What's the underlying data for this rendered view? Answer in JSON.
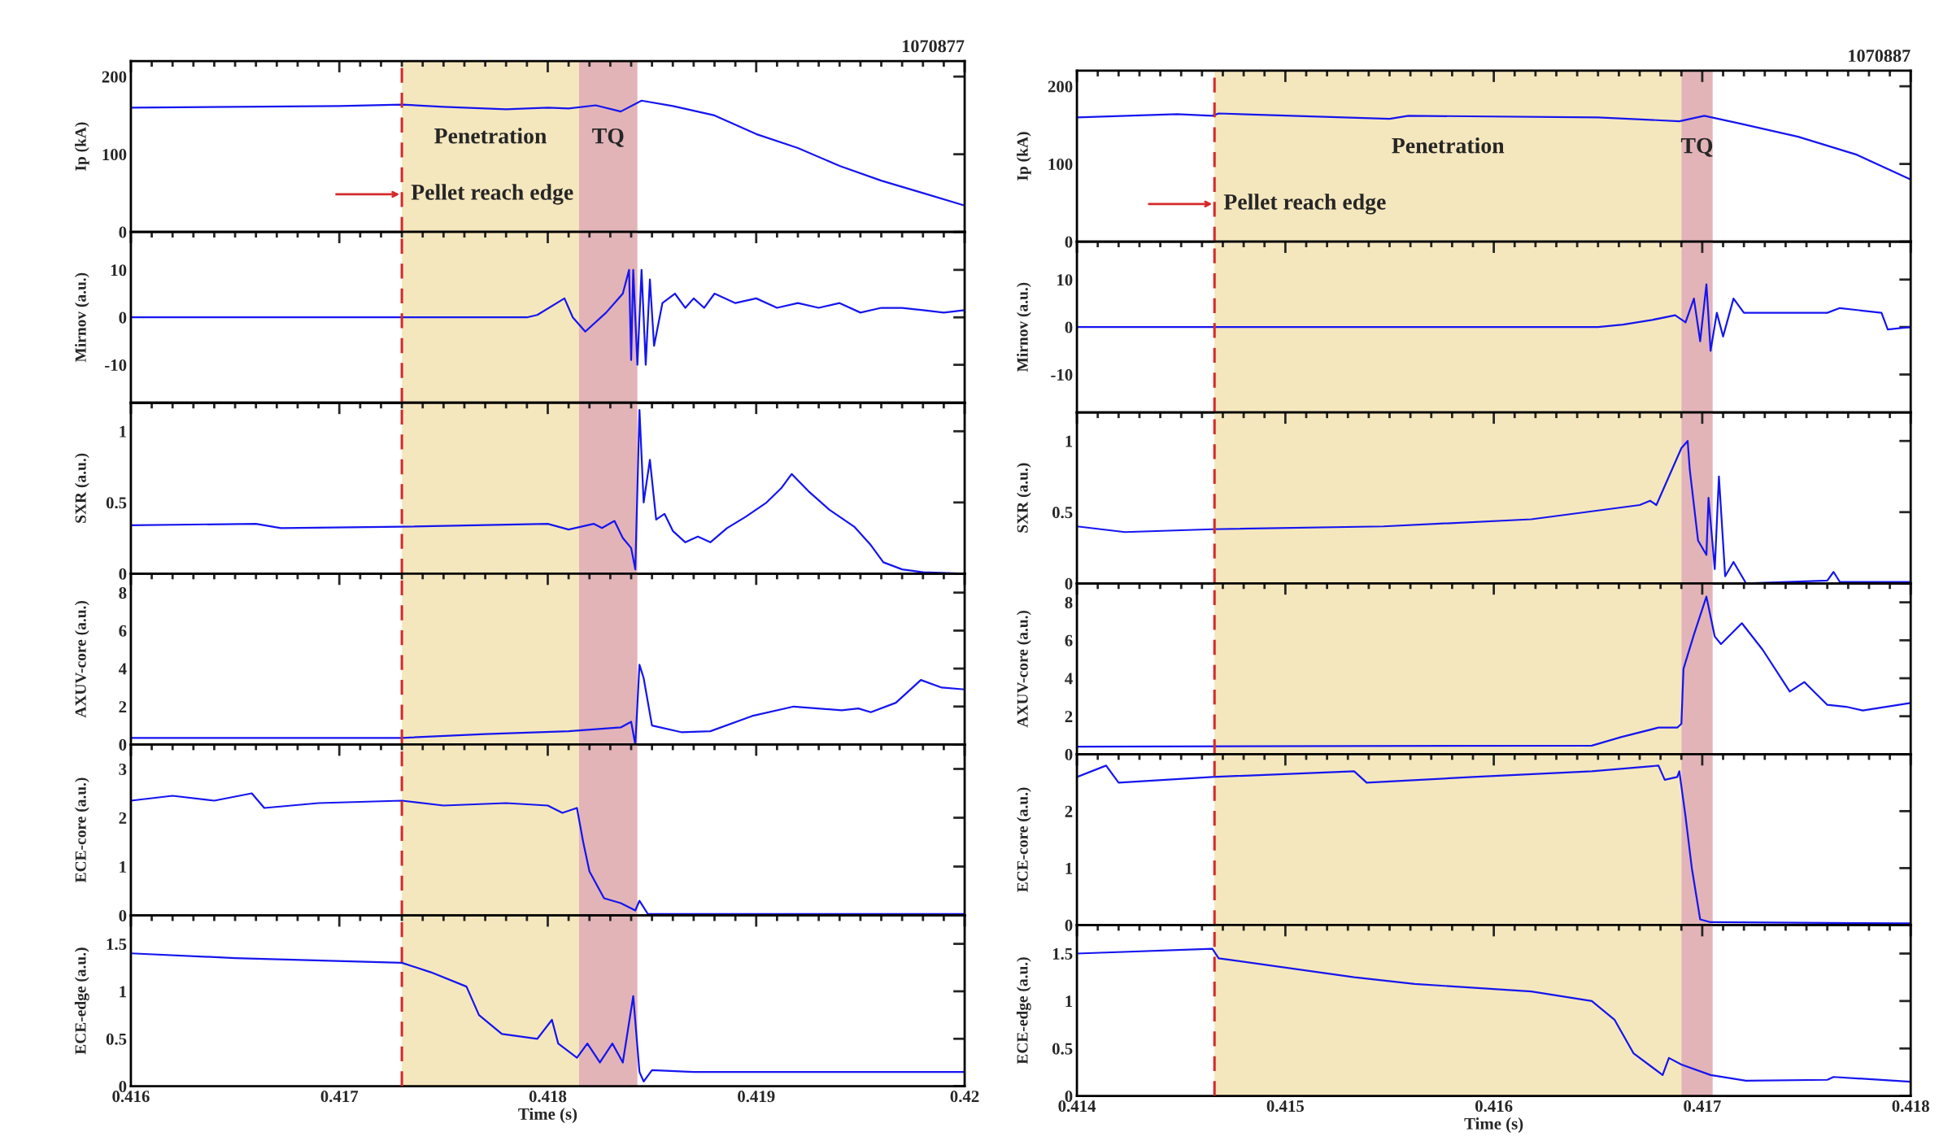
{
  "chart_data": [
    {
      "type": "line",
      "title": "1070877",
      "ylabel": "Ip (kA)",
      "xlim": [
        0.416,
        0.42
      ],
      "xticks": [
        0.416,
        0.417,
        0.418,
        0.419,
        0.42
      ],
      "ylim": [
        0,
        220
      ],
      "yticks": [
        0,
        100,
        200
      ],
      "tick_labels": "y",
      "x": [
        0.416,
        0.4165,
        0.417,
        0.4173,
        0.4175,
        0.4178,
        0.418,
        0.4181,
        0.41823,
        0.41835,
        0.41845,
        0.4186,
        0.4188,
        0.419,
        0.4192,
        0.4194,
        0.4196,
        0.4198,
        0.42
      ],
      "series": [
        {
          "color": "#1515f0",
          "values": [
            160,
            161,
            162,
            164,
            161,
            158,
            160,
            159,
            163,
            155,
            169,
            162,
            150,
            126,
            108,
            85,
            66,
            50,
            34
          ]
        }
      ],
      "ref_lines": [
        {
          "axis": "x",
          "value": 0.4173,
          "label": "Pellet reach edge",
          "color": "#d42a2a",
          "line_style": "dashed"
        }
      ],
      "bands": [
        {
          "axis": "x",
          "from": 0.4173,
          "to": 0.41815,
          "label": "Penetration",
          "color": "#f5e7bd"
        },
        {
          "axis": "x",
          "from": 0.41815,
          "to": 0.41843,
          "label": "TQ",
          "color": "#e2b4b8"
        }
      ]
    },
    {
      "type": "line",
      "title": "1070887",
      "ylabel": "Ip (kA)",
      "xlim": [
        0.414,
        0.418
      ],
      "xticks": [
        0.414,
        0.415,
        0.416,
        0.417,
        0.418
      ],
      "ylim": [
        0,
        220
      ],
      "yticks": [
        0,
        100,
        200
      ],
      "tick_labels": "y",
      "x": [
        0.414,
        0.41448,
        0.41465,
        0.41468,
        0.4155,
        0.41559,
        0.4165,
        0.41689,
        0.41701,
        0.41718,
        0.41746,
        0.41774,
        0.418
      ],
      "series": [
        {
          "color": "#1515f0",
          "values": [
            160,
            164,
            162,
            165,
            158,
            162,
            160,
            155,
            162,
            152,
            135,
            112,
            80
          ]
        }
      ],
      "ref_lines": [
        {
          "axis": "x",
          "value": 0.41466,
          "label": "Pellet reach edge",
          "color": "#d42a2a",
          "line_style": "dashed"
        }
      ],
      "bands": [
        {
          "axis": "x",
          "from": 0.41466,
          "to": 0.4169,
          "label": "Penetration",
          "color": "#f5e7bd"
        },
        {
          "axis": "x",
          "from": 0.4169,
          "to": 0.41705,
          "label": "TQ",
          "color": "#e2b4b8"
        }
      ]
    },
    {
      "type": "line",
      "ylabel": "Mirnov (a.u.)",
      "xlim": [
        0.416,
        0.42
      ],
      "xticks": [
        0.416,
        0.417,
        0.418,
        0.419,
        0.42
      ],
      "ylim": [
        -18,
        18
      ],
      "yticks": [
        -10,
        0,
        10
      ],
      "tick_labels": "y",
      "x": [
        0.416,
        0.417,
        0.4179,
        0.41795,
        0.41808,
        0.41812,
        0.41818,
        0.41828,
        0.41836,
        0.41839,
        0.4184,
        0.41841,
        0.41843,
        0.41845,
        0.41847,
        0.41849,
        0.41851,
        0.41855,
        0.41861,
        0.41866,
        0.4187,
        0.41875,
        0.4188,
        0.4189,
        0.419,
        0.4191,
        0.4192,
        0.4193,
        0.4194,
        0.4195,
        0.4196,
        0.4197,
        0.4198,
        0.4199,
        0.42
      ],
      "series": [
        {
          "color": "#1515f0",
          "values": [
            0,
            0,
            0,
            0.5,
            4,
            0,
            -3,
            1,
            5,
            10,
            -9,
            10,
            -10,
            10,
            -10,
            8,
            -6,
            3,
            5,
            2,
            4,
            2,
            5,
            3,
            4,
            2,
            3,
            2,
            3,
            1,
            2,
            2,
            1.5,
            1,
            1.5
          ]
        }
      ],
      "ref_lines": [
        {
          "axis": "x",
          "value": 0.4173,
          "color": "#d42a2a",
          "line_style": "dashed"
        }
      ],
      "bands": [
        {
          "axis": "x",
          "from": 0.4173,
          "to": 0.41815,
          "color": "#f5e7bd"
        },
        {
          "axis": "x",
          "from": 0.41815,
          "to": 0.41843,
          "color": "#e2b4b8"
        }
      ]
    },
    {
      "type": "line",
      "ylabel": "Mirnov (a.u.)",
      "xlim": [
        0.414,
        0.418
      ],
      "xticks": [
        0.414,
        0.415,
        0.416,
        0.417,
        0.418
      ],
      "ylim": [
        -18,
        18
      ],
      "yticks": [
        -10,
        0,
        10
      ],
      "tick_labels": "y",
      "x": [
        0.414,
        0.4165,
        0.41662,
        0.41676,
        0.41687,
        0.41692,
        0.41696,
        0.41699,
        0.41702,
        0.41704,
        0.41707,
        0.4171,
        0.41715,
        0.4172,
        0.41731,
        0.4176,
        0.41766,
        0.41786,
        0.41789,
        0.418
      ],
      "series": [
        {
          "color": "#1515f0",
          "values": [
            0,
            0,
            0.5,
            1.5,
            2.5,
            1,
            6,
            -3,
            9,
            -5,
            3,
            -2,
            6,
            3,
            3,
            3,
            4,
            3,
            -0.5,
            0
          ]
        }
      ],
      "ref_lines": [
        {
          "axis": "x",
          "value": 0.41466,
          "color": "#d42a2a",
          "line_style": "dashed"
        }
      ],
      "bands": [
        {
          "axis": "x",
          "from": 0.41466,
          "to": 0.4169,
          "color": "#f5e7bd"
        },
        {
          "axis": "x",
          "from": 0.4169,
          "to": 0.41705,
          "color": "#e2b4b8"
        }
      ]
    },
    {
      "type": "line",
      "ylabel": "SXR (a.u.)",
      "xlim": [
        0.416,
        0.42
      ],
      "xticks": [
        0.416,
        0.417,
        0.418,
        0.419,
        0.42
      ],
      "ylim": [
        0,
        1.2
      ],
      "yticks": [
        0,
        0.5,
        1
      ],
      "tick_labels": "y",
      "x": [
        0.416,
        0.4166,
        0.41672,
        0.4173,
        0.418,
        0.4181,
        0.41822,
        0.41826,
        0.41832,
        0.41836,
        0.4184,
        0.41842,
        0.41844,
        0.41846,
        0.41849,
        0.41852,
        0.41856,
        0.4186,
        0.41866,
        0.41872,
        0.41878,
        0.41886,
        0.41895,
        0.41905,
        0.41912,
        0.41917,
        0.41925,
        0.41935,
        0.41947,
        0.41955,
        0.41961,
        0.4197,
        0.4198,
        0.42
      ],
      "series": [
        {
          "color": "#1515f0",
          "values": [
            0.34,
            0.35,
            0.32,
            0.33,
            0.35,
            0.31,
            0.35,
            0.32,
            0.37,
            0.25,
            0.18,
            0.03,
            1.15,
            0.5,
            0.8,
            0.38,
            0.42,
            0.3,
            0.22,
            0.26,
            0.22,
            0.32,
            0.4,
            0.5,
            0.6,
            0.7,
            0.58,
            0.45,
            0.33,
            0.2,
            0.08,
            0.03,
            0.01,
            0.0
          ]
        }
      ],
      "ref_lines": [
        {
          "axis": "x",
          "value": 0.4173,
          "color": "#d42a2a",
          "line_style": "dashed"
        }
      ],
      "bands": [
        {
          "axis": "x",
          "from": 0.4173,
          "to": 0.41815,
          "color": "#f5e7bd"
        },
        {
          "axis": "x",
          "from": 0.41815,
          "to": 0.41843,
          "color": "#e2b4b8"
        }
      ]
    },
    {
      "type": "line",
      "ylabel": "SXR (a.u.)",
      "xlim": [
        0.414,
        0.418
      ],
      "xticks": [
        0.414,
        0.415,
        0.416,
        0.417,
        0.418
      ],
      "ylim": [
        0,
        1.2
      ],
      "yticks": [
        0,
        0.5,
        1
      ],
      "tick_labels": "y",
      "x": [
        0.414,
        0.41423,
        0.41465,
        0.41547,
        0.41618,
        0.4167,
        0.41675,
        0.41678,
        0.4169,
        0.41693,
        0.41694,
        0.41698,
        0.41702,
        0.41703,
        0.41706,
        0.41708,
        0.41711,
        0.41715,
        0.41721,
        0.4176,
        0.41763,
        0.41766,
        0.418
      ],
      "series": [
        {
          "color": "#1515f0",
          "values": [
            0.4,
            0.36,
            0.38,
            0.4,
            0.45,
            0.55,
            0.58,
            0.55,
            0.95,
            1.0,
            0.8,
            0.3,
            0.2,
            0.6,
            0.1,
            0.75,
            0.05,
            0.15,
            0.0,
            0.02,
            0.08,
            0.01,
            0.01
          ]
        }
      ],
      "ref_lines": [
        {
          "axis": "x",
          "value": 0.41466,
          "color": "#d42a2a",
          "line_style": "dashed"
        }
      ],
      "bands": [
        {
          "axis": "x",
          "from": 0.41466,
          "to": 0.4169,
          "color": "#f5e7bd"
        },
        {
          "axis": "x",
          "from": 0.4169,
          "to": 0.41705,
          "color": "#e2b4b8"
        }
      ]
    },
    {
      "type": "line",
      "ylabel": "AXUV-core (a.u.)",
      "xlim": [
        0.416,
        0.42
      ],
      "xticks": [
        0.416,
        0.417,
        0.418,
        0.419,
        0.42
      ],
      "ylim": [
        0,
        9
      ],
      "yticks": [
        0,
        2,
        4,
        6,
        8
      ],
      "tick_labels": "y",
      "x": [
        0.416,
        0.4173,
        0.4177,
        0.4181,
        0.41835,
        0.4184,
        0.41842,
        0.41844,
        0.41846,
        0.4185,
        0.41864,
        0.41878,
        0.41898,
        0.41918,
        0.41941,
        0.41949,
        0.41955,
        0.41967,
        0.41979,
        0.41989,
        0.42
      ],
      "series": [
        {
          "color": "#1515f0",
          "values": [
            0.35,
            0.35,
            0.55,
            0.7,
            0.9,
            1.2,
            0.0,
            4.2,
            3.5,
            1.0,
            0.65,
            0.7,
            1.5,
            2.0,
            1.8,
            1.9,
            1.7,
            2.2,
            3.4,
            3.0,
            2.9
          ]
        }
      ],
      "ref_lines": [
        {
          "axis": "x",
          "value": 0.4173,
          "color": "#d42a2a",
          "line_style": "dashed"
        }
      ],
      "bands": [
        {
          "axis": "x",
          "from": 0.4173,
          "to": 0.41815,
          "color": "#f5e7bd"
        },
        {
          "axis": "x",
          "from": 0.41815,
          "to": 0.41843,
          "color": "#e2b4b8"
        }
      ]
    },
    {
      "type": "line",
      "ylabel": "AXUV-core (a.u.)",
      "xlim": [
        0.414,
        0.418
      ],
      "xticks": [
        0.414,
        0.415,
        0.416,
        0.417,
        0.418
      ],
      "ylim": [
        0,
        9
      ],
      "yticks": [
        0,
        2,
        4,
        6,
        8
      ],
      "tick_labels": "y",
      "x": [
        0.414,
        0.41647,
        0.41661,
        0.41679,
        0.41688,
        0.4169,
        0.41691,
        0.41696,
        0.41702,
        0.41706,
        0.41709,
        0.41719,
        0.41729,
        0.41742,
        0.41749,
        0.4176,
        0.41769,
        0.41777,
        0.418
      ],
      "series": [
        {
          "color": "#1515f0",
          "values": [
            0.4,
            0.45,
            0.9,
            1.4,
            1.4,
            1.6,
            4.5,
            6.3,
            8.3,
            6.2,
            5.8,
            6.9,
            5.5,
            3.3,
            3.8,
            2.6,
            2.5,
            2.3,
            2.7
          ]
        }
      ],
      "ref_lines": [
        {
          "axis": "x",
          "value": 0.41466,
          "color": "#d42a2a",
          "line_style": "dashed"
        }
      ],
      "bands": [
        {
          "axis": "x",
          "from": 0.41466,
          "to": 0.4169,
          "color": "#f5e7bd"
        },
        {
          "axis": "x",
          "from": 0.4169,
          "to": 0.41705,
          "color": "#e2b4b8"
        }
      ]
    },
    {
      "type": "line",
      "ylabel": "ECE-core (a.u.)",
      "xlim": [
        0.416,
        0.42
      ],
      "xticks": [
        0.416,
        0.417,
        0.418,
        0.419,
        0.42
      ],
      "ylim": [
        0,
        3.5
      ],
      "yticks": [
        0,
        1,
        2,
        3
      ],
      "tick_labels": "y",
      "x": [
        0.416,
        0.4162,
        0.4164,
        0.41658,
        0.41664,
        0.4169,
        0.4173,
        0.4175,
        0.4178,
        0.418,
        0.41807,
        0.41814,
        0.41817,
        0.4182,
        0.41827,
        0.41835,
        0.41842,
        0.41844,
        0.41848,
        0.4186,
        0.42
      ],
      "series": [
        {
          "color": "#1515f0",
          "values": [
            2.35,
            2.45,
            2.35,
            2.5,
            2.2,
            2.3,
            2.35,
            2.25,
            2.3,
            2.25,
            2.1,
            2.2,
            1.5,
            0.9,
            0.35,
            0.25,
            0.1,
            0.3,
            0.03,
            0.03,
            0.03
          ]
        }
      ],
      "ref_lines": [
        {
          "axis": "x",
          "value": 0.4173,
          "color": "#d42a2a",
          "line_style": "dashed"
        }
      ],
      "bands": [
        {
          "axis": "x",
          "from": 0.4173,
          "to": 0.41815,
          "color": "#f5e7bd"
        },
        {
          "axis": "x",
          "from": 0.41815,
          "to": 0.41843,
          "color": "#e2b4b8"
        }
      ]
    },
    {
      "type": "line",
      "ylabel": "ECE-core (a.u.)",
      "xlim": [
        0.414,
        0.418
      ],
      "xticks": [
        0.414,
        0.415,
        0.416,
        0.417,
        0.418
      ],
      "ylim": [
        0,
        3
      ],
      "yticks": [
        0,
        1,
        2
      ],
      "tick_labels": "y",
      "x": [
        0.414,
        0.41414,
        0.4142,
        0.41465,
        0.41533,
        0.41539,
        0.4159,
        0.41647,
        0.41679,
        0.41682,
        0.41688,
        0.41689,
        0.41692,
        0.41695,
        0.41699,
        0.41704,
        0.418
      ],
      "series": [
        {
          "color": "#1515f0",
          "values": [
            2.6,
            2.8,
            2.5,
            2.6,
            2.7,
            2.5,
            2.6,
            2.7,
            2.8,
            2.55,
            2.6,
            2.7,
            1.9,
            1.0,
            0.1,
            0.05,
            0.03
          ]
        }
      ],
      "ref_lines": [
        {
          "axis": "x",
          "value": 0.41466,
          "color": "#d42a2a",
          "line_style": "dashed"
        }
      ],
      "bands": [
        {
          "axis": "x",
          "from": 0.41466,
          "to": 0.4169,
          "color": "#f5e7bd"
        },
        {
          "axis": "x",
          "from": 0.4169,
          "to": 0.41705,
          "color": "#e2b4b8"
        }
      ]
    },
    {
      "type": "line",
      "ylabel": "ECE-edge (a.u.)",
      "xlabel": "Time (s)",
      "xlim": [
        0.416,
        0.42
      ],
      "xticks": [
        0.416,
        0.417,
        0.418,
        0.419,
        0.42
      ],
      "ylim": [
        0,
        1.8
      ],
      "yticks": [
        0,
        0.5,
        1,
        1.5
      ],
      "x": [
        0.416,
        0.4165,
        0.4173,
        0.41744,
        0.41761,
        0.41767,
        0.41778,
        0.41795,
        0.41802,
        0.41805,
        0.41814,
        0.41819,
        0.41825,
        0.41831,
        0.41836,
        0.41841,
        0.41844,
        0.41846,
        0.4185,
        0.4187,
        0.42
      ],
      "series": [
        {
          "color": "#1515f0",
          "values": [
            1.4,
            1.35,
            1.3,
            1.2,
            1.05,
            0.75,
            0.55,
            0.5,
            0.7,
            0.45,
            0.3,
            0.45,
            0.25,
            0.45,
            0.25,
            0.95,
            0.15,
            0.05,
            0.17,
            0.15,
            0.15
          ]
        }
      ],
      "ref_lines": [
        {
          "axis": "x",
          "value": 0.4173,
          "color": "#d42a2a",
          "line_style": "dashed"
        }
      ],
      "bands": [
        {
          "axis": "x",
          "from": 0.4173,
          "to": 0.41815,
          "color": "#f5e7bd"
        },
        {
          "axis": "x",
          "from": 0.41815,
          "to": 0.41843,
          "color": "#e2b4b8"
        }
      ]
    },
    {
      "type": "line",
      "ylabel": "ECE-edge (a.u.)",
      "xlabel": "Time (s)",
      "xlim": [
        0.414,
        0.418
      ],
      "xticks": [
        0.414,
        0.415,
        0.416,
        0.417,
        0.418
      ],
      "ylim": [
        0,
        1.8
      ],
      "yticks": [
        0,
        0.5,
        1,
        1.5
      ],
      "x": [
        0.414,
        0.41465,
        0.41468,
        0.41533,
        0.41562,
        0.41618,
        0.41647,
        0.41658,
        0.41667,
        0.41681,
        0.41684,
        0.4169,
        0.41704,
        0.41721,
        0.4176,
        0.41763,
        0.418
      ],
      "series": [
        {
          "color": "#1515f0",
          "values": [
            1.5,
            1.55,
            1.45,
            1.25,
            1.18,
            1.1,
            1.0,
            0.8,
            0.45,
            0.22,
            0.4,
            0.33,
            0.22,
            0.16,
            0.17,
            0.2,
            0.15
          ]
        }
      ],
      "ref_lines": [
        {
          "axis": "x",
          "value": 0.41466,
          "color": "#d42a2a",
          "line_style": "dashed"
        }
      ],
      "bands": [
        {
          "axis": "x",
          "from": 0.41466,
          "to": 0.4169,
          "color": "#f5e7bd"
        },
        {
          "axis": "x",
          "from": 0.4169,
          "to": 0.41705,
          "color": "#e2b4b8"
        }
      ]
    }
  ]
}
